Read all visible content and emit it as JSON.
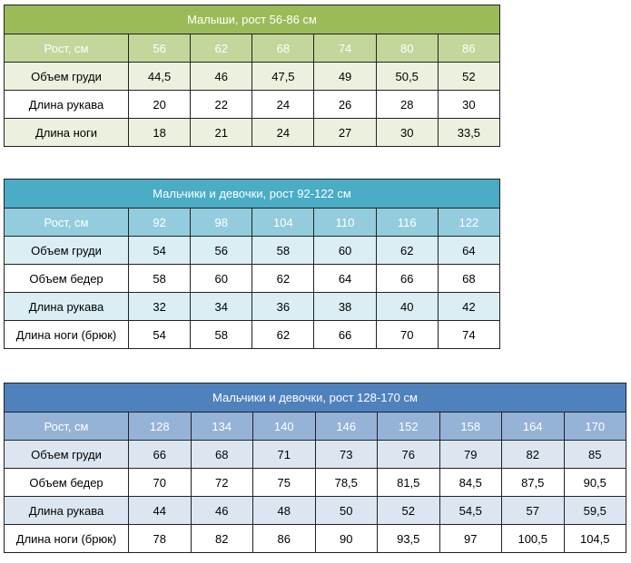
{
  "tables": [
    {
      "title": "Малыши, рост 56-86 см",
      "header_label": "Рост, см",
      "heights": [
        "56",
        "62",
        "68",
        "74",
        "80",
        "86"
      ],
      "rows": [
        {
          "label": "Объем груди",
          "values": [
            "44,5",
            "46",
            "47,5",
            "49",
            "50,5",
            "52"
          ]
        },
        {
          "label": "Длина рукава",
          "values": [
            "20",
            "22",
            "24",
            "26",
            "28",
            "30"
          ]
        },
        {
          "label": "Длина ноги",
          "values": [
            "18",
            "21",
            "24",
            "27",
            "30",
            "33,5"
          ]
        }
      ]
    },
    {
      "title": "Мальчики и девочки, рост 92-122 см",
      "header_label": "Рост, см",
      "heights": [
        "92",
        "98",
        "104",
        "110",
        "116",
        "122"
      ],
      "rows": [
        {
          "label": "Объем груди",
          "values": [
            "54",
            "56",
            "58",
            "60",
            "62",
            "64"
          ]
        },
        {
          "label": "Объем бедер",
          "values": [
            "58",
            "60",
            "62",
            "64",
            "66",
            "68"
          ]
        },
        {
          "label": "Длина рукава",
          "values": [
            "32",
            "34",
            "36",
            "38",
            "40",
            "42"
          ]
        },
        {
          "label": "Длина ноги (брюк)",
          "values": [
            "54",
            "58",
            "62",
            "66",
            "70",
            "74"
          ]
        }
      ]
    },
    {
      "title": "Мальчики и девочки, рост 128-170 см",
      "header_label": "Рост, см",
      "heights": [
        "128",
        "134",
        "140",
        "146",
        "152",
        "158",
        "164",
        "170"
      ],
      "rows": [
        {
          "label": "Объем груди",
          "values": [
            "66",
            "68",
            "71",
            "73",
            "76",
            "79",
            "82",
            "85"
          ]
        },
        {
          "label": "Объем бедер",
          "values": [
            "70",
            "72",
            "75",
            "78,5",
            "81,5",
            "84,5",
            "87,5",
            "90,5"
          ]
        },
        {
          "label": "Длина рукава",
          "values": [
            "44",
            "46",
            "48",
            "50",
            "52",
            "54,5",
            "57",
            "59,5"
          ]
        },
        {
          "label": "Длина ноги (брюк)",
          "values": [
            "78",
            "82",
            "86",
            "90",
            "93,5",
            "97",
            "100,5",
            "104,5"
          ]
        }
      ]
    }
  ]
}
